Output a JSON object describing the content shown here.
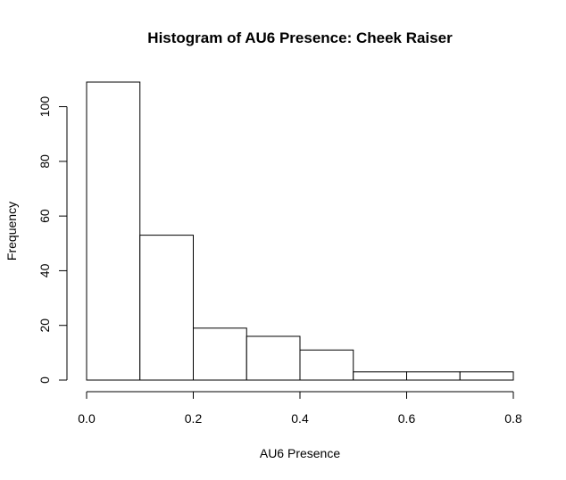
{
  "chart_data": {
    "type": "bar",
    "title": "Histogram of AU6 Presence: Cheek Raiser",
    "xlabel": "AU6 Presence",
    "ylabel": "Frequency",
    "bins": [
      {
        "from": 0.0,
        "to": 0.1,
        "count": 109
      },
      {
        "from": 0.1,
        "to": 0.2,
        "count": 53
      },
      {
        "from": 0.2,
        "to": 0.3,
        "count": 19
      },
      {
        "from": 0.3,
        "to": 0.4,
        "count": 16
      },
      {
        "from": 0.4,
        "to": 0.5,
        "count": 11
      },
      {
        "from": 0.5,
        "to": 0.6,
        "count": 3
      },
      {
        "from": 0.6,
        "to": 0.7,
        "count": 3
      },
      {
        "from": 0.7,
        "to": 0.8,
        "count": 3
      }
    ],
    "xlim": [
      0.0,
      0.8
    ],
    "ylim": [
      0,
      109
    ],
    "x_ticks": [
      "0.0",
      "0.2",
      "0.4",
      "0.6",
      "0.8"
    ],
    "y_ticks": [
      "0",
      "20",
      "40",
      "60",
      "80",
      "100"
    ],
    "grid": false,
    "legend": "none",
    "colors": {
      "bar_fill": "#ffffff",
      "bar_stroke": "#000000"
    }
  }
}
